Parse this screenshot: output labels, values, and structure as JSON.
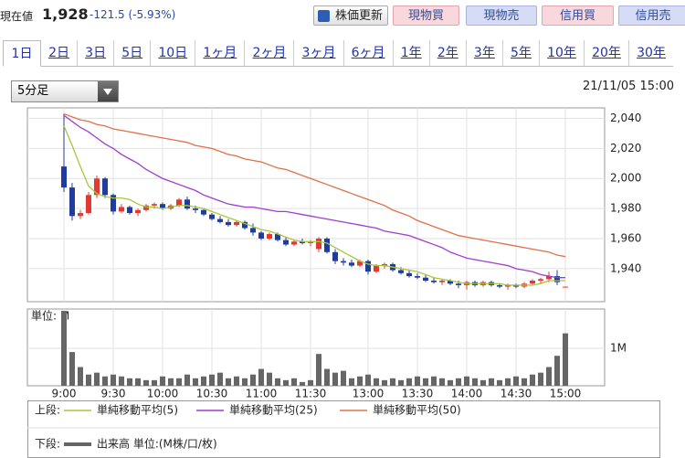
{
  "header": {
    "label": "現在値",
    "price": "1,928",
    "change": "-121.5 (-5.93%)"
  },
  "buttons": [
    "株価更新",
    "現物買",
    "現物売",
    "信用買",
    "信用売"
  ],
  "tabs": [
    "1日",
    "2日",
    "3日",
    "5日",
    "10日",
    "1ヶ月",
    "2ヶ月",
    "3ヶ月",
    "6ヶ月",
    "1年",
    "2年",
    "3年",
    "5年",
    "10年",
    "20年",
    "30年"
  ],
  "interval": "5分足",
  "timestamp": "21/11/05 15:00",
  "chart_data": [
    {
      "type": "candlestick",
      "legend_label": "上段:",
      "categories": [
        "9:00",
        null,
        null,
        null,
        null,
        null,
        "9:30",
        null,
        null,
        null,
        null,
        null,
        "10:00",
        null,
        null,
        null,
        null,
        null,
        "10:30",
        null,
        null,
        null,
        null,
        null,
        "11:00",
        null,
        null,
        null,
        null,
        null,
        "11:30",
        null,
        null,
        null,
        null,
        null,
        null,
        "13:00",
        null,
        null,
        null,
        null,
        null,
        "13:30",
        null,
        null,
        null,
        null,
        null,
        "14:00",
        null,
        null,
        null,
        null,
        null,
        "14:30",
        null,
        null,
        null,
        null,
        null,
        "15:00"
      ],
      "open": [
        2008,
        1994,
        1975,
        1977,
        1989,
        2000,
        1989,
        1978,
        1981,
        1977,
        1979,
        1982,
        1983,
        1980,
        1982,
        1986,
        1980,
        1979,
        1976,
        1973,
        1971,
        1969,
        1971,
        1967,
        1964,
        1960,
        1963,
        1959,
        1956,
        1958,
        1957,
        1953,
        1960,
        1951,
        1945,
        1944,
        1942,
        1945,
        1938,
        1942,
        1943,
        1939,
        1937,
        1935,
        1934,
        1932,
        1931,
        1932,
        1930,
        1929,
        1931,
        1929,
        1931,
        1929,
        1928,
        1929,
        1928,
        1930,
        1932,
        1933,
        1935,
        1928
      ],
      "high": [
        2043,
        1997,
        1979,
        1991,
        2002,
        2001,
        1990,
        1983,
        1982,
        1980,
        1983,
        1984,
        1984,
        1983,
        1987,
        1988,
        1982,
        1980,
        1977,
        1975,
        1973,
        1972,
        1972,
        1970,
        1965,
        1964,
        1964,
        1961,
        1959,
        1960,
        1959,
        1961,
        1961,
        1953,
        1947,
        1946,
        1946,
        1946,
        1943,
        1944,
        1944,
        1941,
        1939,
        1937,
        1936,
        1934,
        1933,
        1933,
        1932,
        1932,
        1932,
        1932,
        1932,
        1930,
        1930,
        1930,
        1931,
        1933,
        1934,
        1938,
        1939,
        1928
      ],
      "low": [
        1991,
        1972,
        1973,
        1976,
        1987,
        1987,
        1976,
        1977,
        1976,
        1975,
        1978,
        1980,
        1979,
        1979,
        1981,
        1979,
        1977,
        1975,
        1972,
        1970,
        1968,
        1968,
        1966,
        1962,
        1959,
        1959,
        1958,
        1955,
        1955,
        1956,
        1955,
        1951,
        1950,
        1943,
        1942,
        1941,
        1941,
        1936,
        1937,
        1940,
        1938,
        1936,
        1934,
        1933,
        1931,
        1930,
        1929,
        1929,
        1927,
        1926,
        1928,
        1928,
        1928,
        1927,
        1926,
        1927,
        1927,
        1929,
        1930,
        1931,
        1929,
        1928
      ],
      "close": [
        1994,
        1975,
        1977,
        1989,
        2000,
        1989,
        1978,
        1981,
        1977,
        1979,
        1982,
        1983,
        1980,
        1982,
        1986,
        1980,
        1979,
        1976,
        1973,
        1971,
        1969,
        1971,
        1967,
        1964,
        1960,
        1963,
        1959,
        1956,
        1958,
        1957,
        1958,
        1960,
        1951,
        1945,
        1944,
        1942,
        1945,
        1938,
        1942,
        1943,
        1939,
        1937,
        1935,
        1934,
        1932,
        1931,
        1932,
        1930,
        1929,
        1931,
        1929,
        1931,
        1929,
        1928,
        1929,
        1928,
        1930,
        1932,
        1933,
        1935,
        1931,
        1928
      ],
      "up_color": "#e23a33",
      "down_color": "#1f3c9e",
      "series": [
        {
          "name": "単純移動平均(5)",
          "color": "#a9c73a",
          "values": [
            2035,
            2022,
            2008,
            1995,
            1990,
            1988,
            1987,
            1987,
            1986,
            1983,
            1981,
            1981,
            1980,
            1981,
            1982,
            1982,
            1981,
            1980,
            1978,
            1976,
            1974,
            1972,
            1970,
            1968,
            1966,
            1965,
            1963,
            1961,
            1959,
            1958,
            1958,
            1958,
            1957,
            1954,
            1951,
            1948,
            1945,
            1943,
            1942,
            1942,
            1941,
            1940,
            1939,
            1938,
            1936,
            1934,
            1933,
            1932,
            1931,
            1930,
            1930,
            1930,
            1930,
            1930,
            1929,
            1929,
            1929,
            1929,
            1930,
            1932,
            1932,
            1932
          ]
        },
        {
          "name": "単純移動平均(25)",
          "color": "#9b3fd0",
          "values": [
            2042,
            2038,
            2034,
            2031,
            2027,
            2023,
            2020,
            2016,
            2013,
            2010,
            2006,
            2003,
            2000,
            1998,
            1996,
            1994,
            1992,
            1989,
            1987,
            1985,
            1983,
            1982,
            1981,
            1981,
            1980,
            1979,
            1978,
            1978,
            1977,
            1976,
            1975,
            1974,
            1973,
            1972,
            1971,
            1970,
            1969,
            1968,
            1967,
            1965,
            1964,
            1963,
            1962,
            1960,
            1958,
            1956,
            1954,
            1951,
            1949,
            1947,
            1946,
            1945,
            1944,
            1943,
            1942,
            1940,
            1939,
            1938,
            1936,
            1935,
            1934,
            1934
          ]
        },
        {
          "name": "単純移動平均(50)",
          "color": "#e0704a",
          "values": [
            2043,
            2041,
            2039,
            2038,
            2036,
            2035,
            2033,
            2032,
            2031,
            2030,
            2029,
            2028,
            2027,
            2026,
            2025,
            2024,
            2022,
            2021,
            2020,
            2018,
            2016,
            2015,
            2013,
            2012,
            2011,
            2009,
            2007,
            2006,
            2004,
            2002,
            2000,
            1998,
            1996,
            1994,
            1992,
            1990,
            1988,
            1986,
            1984,
            1982,
            1979,
            1977,
            1975,
            1972,
            1970,
            1968,
            1966,
            1964,
            1962,
            1961,
            1960,
            1959,
            1958,
            1957,
            1956,
            1955,
            1954,
            1953,
            1952,
            1951,
            1949,
            1948
          ]
        }
      ],
      "ylim": [
        1918,
        2047
      ],
      "yticks": [
        {
          "value": 1940,
          "label": "1,940"
        },
        {
          "value": 1960,
          "label": "1,960"
        },
        {
          "value": 1980,
          "label": "1,980"
        },
        {
          "value": 2000,
          "label": "2,000"
        },
        {
          "value": 2020,
          "label": "2,020"
        },
        {
          "value": 2040,
          "label": "2,040"
        }
      ],
      "grid": true
    },
    {
      "type": "bar",
      "legend_label": "下段:",
      "name": "出来高 単位:(M株/口/枚)",
      "unit_label": "単位: M",
      "color": "#666666",
      "values": [
        2.0,
        0.9,
        0.5,
        0.3,
        0.35,
        0.25,
        0.3,
        0.25,
        0.2,
        0.2,
        0.15,
        0.15,
        0.25,
        0.2,
        0.2,
        0.3,
        0.2,
        0.25,
        0.3,
        0.35,
        0.2,
        0.25,
        0.2,
        0.3,
        0.45,
        0.35,
        0.2,
        0.15,
        0.2,
        0.1,
        0.15,
        0.85,
        0.45,
        0.35,
        0.4,
        0.2,
        0.25,
        0.3,
        0.2,
        0.15,
        0.2,
        0.15,
        0.2,
        0.25,
        0.2,
        0.25,
        0.2,
        0.15,
        0.2,
        0.25,
        0.2,
        0.15,
        0.2,
        0.15,
        0.2,
        0.25,
        0.2,
        0.3,
        0.35,
        0.5,
        0.8,
        1.4
      ],
      "ylim": [
        0,
        2.05
      ],
      "yticks": [
        {
          "value": 1,
          "label": "1M"
        }
      ],
      "grid": true
    }
  ]
}
